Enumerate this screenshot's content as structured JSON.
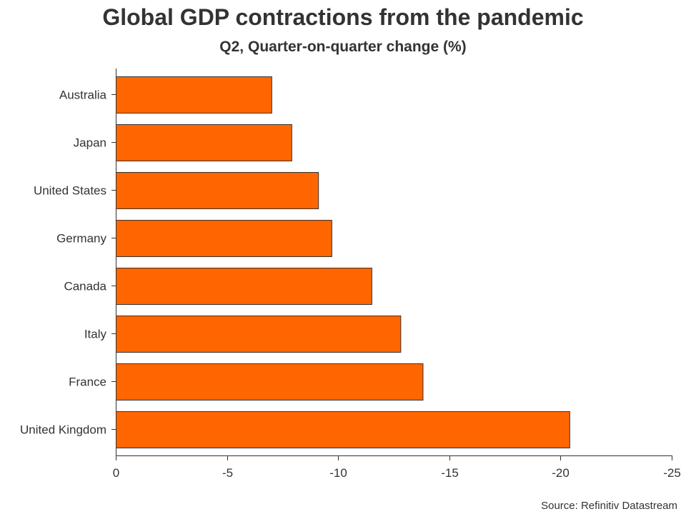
{
  "chart_data": {
    "type": "bar",
    "orientation": "horizontal",
    "title": "Global GDP contractions from the pandemic",
    "subtitle": "Q2, Quarter-on-quarter change (%)",
    "categories": [
      "Australia",
      "Japan",
      "United States",
      "Germany",
      "Canada",
      "Italy",
      "France",
      "United Kingdom"
    ],
    "values": [
      -7.0,
      -7.9,
      -9.1,
      -9.7,
      -11.5,
      -12.8,
      -13.8,
      -20.4
    ],
    "xlim": [
      0,
      -25
    ],
    "xticks": [
      0,
      -5,
      -10,
      -15,
      -20,
      -25
    ],
    "xtick_labels": [
      "0",
      "-5",
      "-10",
      "-15",
      "-20",
      "-25"
    ],
    "bar_color": "#ff6600",
    "bar_edge_color": "#333333",
    "grid": false,
    "legend": "none",
    "source": "Source: Refinitiv Datastream"
  }
}
